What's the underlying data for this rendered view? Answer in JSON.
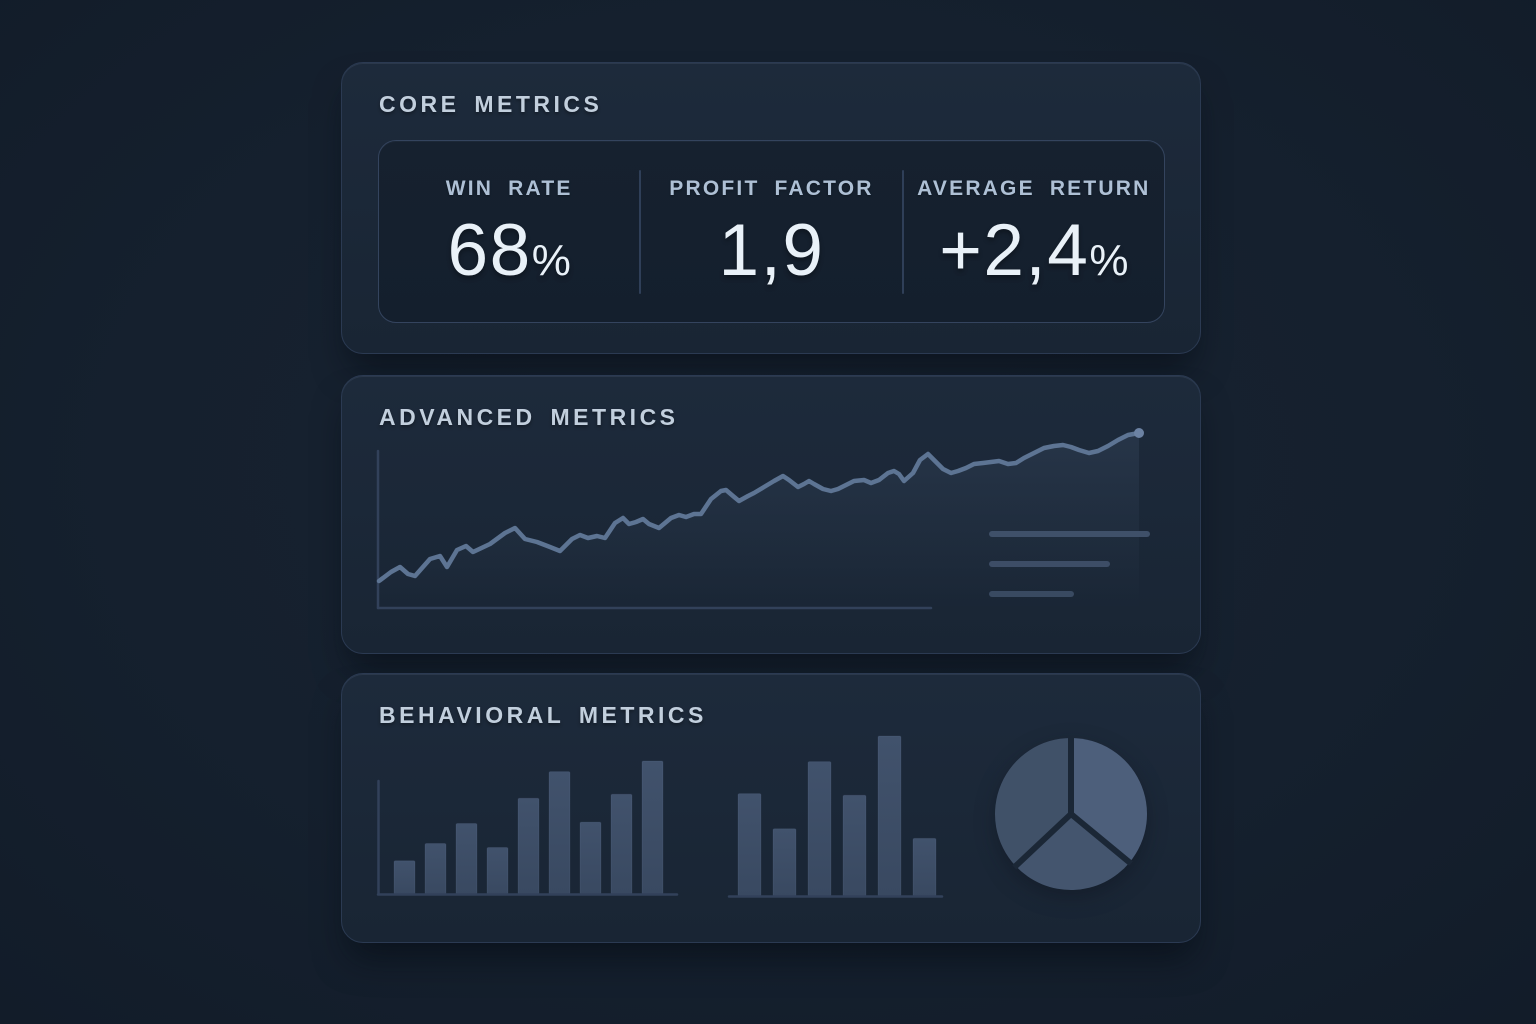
{
  "palette": {
    "background": "#15202e",
    "card": "#1b2736",
    "axis": "#32415a",
    "line": "#5d7493",
    "line_dot": "#6c82a3",
    "area_fill": "#5d7493",
    "bar": "#41526c",
    "bar_dark": "#394961",
    "legend_line": "#3f5069",
    "pie_light": "#4d5f7b",
    "pie_mid": "#44556e",
    "pie_dark": "#405168",
    "title_text": "#c2cfdd",
    "label_text": "#aec0d5",
    "value_text": "#e9f1f8"
  },
  "cards": {
    "core": {
      "title": "CORE METRICS",
      "stats": [
        {
          "label": "WIN RATE",
          "value": "68",
          "suffix": "%"
        },
        {
          "label": "PROFIT FACTOR",
          "value": "1,9",
          "suffix": ""
        },
        {
          "label": "AVERAGE RETURN",
          "value": "+2,4",
          "suffix": "%"
        }
      ]
    },
    "advanced": {
      "title": "ADVANCED METRICS"
    },
    "behavioral": {
      "title": "BEHAVIORAL METRICS"
    }
  },
  "chart_data": [
    {
      "id": "equity-line",
      "type": "line",
      "title": "ADVANCED METRICS",
      "xlabel": "",
      "ylabel": "",
      "axes_labeled": false,
      "grid": false,
      "trend": "upward",
      "points": [
        [
          4,
          160
        ],
        [
          16,
          151
        ],
        [
          25,
          146
        ],
        [
          33,
          153
        ],
        [
          40,
          155
        ],
        [
          55,
          138
        ],
        [
          65,
          135
        ],
        [
          72,
          146
        ],
        [
          82,
          129
        ],
        [
          91,
          125
        ],
        [
          98,
          131
        ],
        [
          115,
          123
        ],
        [
          130,
          112
        ],
        [
          140,
          107
        ],
        [
          150,
          118
        ],
        [
          162,
          121
        ],
        [
          175,
          126
        ],
        [
          185,
          130
        ],
        [
          197,
          118
        ],
        [
          205,
          114
        ],
        [
          213,
          117
        ],
        [
          222,
          115
        ],
        [
          230,
          117
        ],
        [
          240,
          102
        ],
        [
          248,
          97
        ],
        [
          254,
          103
        ],
        [
          261,
          101
        ],
        [
          268,
          98
        ],
        [
          274,
          103
        ],
        [
          284,
          107
        ],
        [
          296,
          97
        ],
        [
          304,
          94
        ],
        [
          311,
          96
        ],
        [
          319,
          93
        ],
        [
          326,
          93
        ],
        [
          336,
          78
        ],
        [
          346,
          70
        ],
        [
          351,
          69
        ],
        [
          358,
          75
        ],
        [
          364,
          80
        ],
        [
          373,
          75
        ],
        [
          379,
          72
        ],
        [
          389,
          66
        ],
        [
          399,
          60
        ],
        [
          408,
          55
        ],
        [
          414,
          59
        ],
        [
          423,
          66
        ],
        [
          429,
          63
        ],
        [
          434,
          60
        ],
        [
          439,
          63
        ],
        [
          448,
          68
        ],
        [
          456,
          70
        ],
        [
          463,
          68
        ],
        [
          469,
          65
        ],
        [
          479,
          60
        ],
        [
          489,
          59
        ],
        [
          496,
          62
        ],
        [
          504,
          59
        ],
        [
          513,
          52
        ],
        [
          519,
          50
        ],
        [
          524,
          53
        ],
        [
          529,
          60
        ],
        [
          538,
          52
        ],
        [
          545,
          39
        ],
        [
          553,
          33
        ],
        [
          559,
          39
        ],
        [
          568,
          48
        ],
        [
          576,
          52
        ],
        [
          583,
          50
        ],
        [
          591,
          47
        ],
        [
          599,
          43
        ],
        [
          608,
          42
        ],
        [
          616,
          41
        ],
        [
          624,
          40
        ],
        [
          633,
          43
        ],
        [
          641,
          42
        ],
        [
          649,
          37
        ],
        [
          659,
          32
        ],
        [
          669,
          27
        ],
        [
          679,
          25
        ],
        [
          688,
          24
        ],
        [
          696,
          26
        ],
        [
          704,
          29
        ],
        [
          714,
          32
        ],
        [
          723,
          30
        ],
        [
          733,
          25
        ],
        [
          743,
          19
        ],
        [
          753,
          14
        ],
        [
          764,
          12
        ]
      ],
      "placeholder_line_lengths": [
        161,
        121,
        85
      ]
    },
    {
      "id": "behavior-bars-primary",
      "type": "bar",
      "categories": [],
      "values": [
        25,
        38,
        53,
        35,
        72,
        92,
        54,
        75,
        100
      ],
      "ylim": [
        0,
        100
      ]
    },
    {
      "id": "behavior-bars-secondary",
      "type": "bar",
      "categories": [],
      "values": [
        64,
        42,
        84,
        63,
        100,
        36
      ],
      "ylim": [
        0,
        100
      ]
    },
    {
      "id": "behavior-pie",
      "type": "pie",
      "slices": [
        {
          "label": "",
          "value": 36,
          "tone": "light"
        },
        {
          "label": "",
          "value": 27,
          "tone": "mid"
        },
        {
          "label": "",
          "value": 37,
          "tone": "dark"
        }
      ]
    }
  ]
}
